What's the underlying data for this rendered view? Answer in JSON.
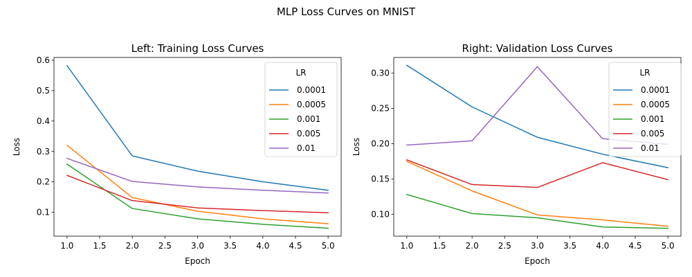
{
  "figure": {
    "suptitle": "MLP Loss Curves on MNIST"
  },
  "chart_data": [
    {
      "type": "line",
      "title": "Left: Training Loss Curves",
      "xlabel": "Epoch",
      "ylabel": "Loss",
      "x": [
        1,
        2,
        3,
        4,
        5
      ],
      "xlim": [
        0.8,
        5.2
      ],
      "ylim": [
        0.021,
        0.609
      ],
      "xticks": [
        1.0,
        1.5,
        2.0,
        2.5,
        3.0,
        3.5,
        4.0,
        4.5,
        5.0
      ],
      "xtick_labels": [
        "1.0",
        "1.5",
        "2.0",
        "2.5",
        "3.0",
        "3.5",
        "4.0",
        "4.5",
        "5.0"
      ],
      "yticks": [
        0.1,
        0.2,
        0.3,
        0.4,
        0.5,
        0.6
      ],
      "ytick_labels": [
        "0.1",
        "0.2",
        "0.3",
        "0.4",
        "0.5",
        "0.6"
      ],
      "grid": false,
      "legend": {
        "title": "LR",
        "placement": "top-right"
      },
      "series": [
        {
          "name": "0.0001",
          "color": "#1f77b4",
          "values": [
            0.582,
            0.285,
            0.235,
            0.2,
            0.172
          ]
        },
        {
          "name": "0.0005",
          "color": "#ff7f0e",
          "values": [
            0.32,
            0.148,
            0.103,
            0.078,
            0.062
          ]
        },
        {
          "name": "0.001",
          "color": "#2ca02c",
          "values": [
            0.258,
            0.112,
            0.078,
            0.06,
            0.047
          ]
        },
        {
          "name": "0.005",
          "color": "#d62728",
          "values": [
            0.221,
            0.138,
            0.114,
            0.105,
            0.098
          ]
        },
        {
          "name": "0.01",
          "color": "#9467bd",
          "values": [
            0.277,
            0.201,
            0.183,
            0.172,
            0.163
          ]
        }
      ]
    },
    {
      "type": "line",
      "title": "Right: Validation Loss Curves",
      "xlabel": "Epoch",
      "ylabel": "Loss",
      "x": [
        1,
        2,
        3,
        4,
        5
      ],
      "xlim": [
        0.8,
        5.2
      ],
      "ylim": [
        0.069,
        0.322
      ],
      "xticks": [
        1.0,
        1.5,
        2.0,
        2.5,
        3.0,
        3.5,
        4.0,
        4.5,
        5.0
      ],
      "xtick_labels": [
        "1.0",
        "1.5",
        "2.0",
        "2.5",
        "3.0",
        "3.5",
        "4.0",
        "4.5",
        "5.0"
      ],
      "yticks": [
        0.1,
        0.15,
        0.2,
        0.25,
        0.3
      ],
      "ytick_labels": [
        "0.10",
        "0.15",
        "0.20",
        "0.25",
        "0.30"
      ],
      "grid": false,
      "legend": {
        "title": "LR",
        "placement": "top-right"
      },
      "series": [
        {
          "name": "0.0001",
          "color": "#1f77b4",
          "values": [
            0.311,
            0.252,
            0.209,
            0.185,
            0.166
          ]
        },
        {
          "name": "0.0005",
          "color": "#ff7f0e",
          "values": [
            0.175,
            0.133,
            0.099,
            0.092,
            0.083
          ]
        },
        {
          "name": "0.001",
          "color": "#2ca02c",
          "values": [
            0.128,
            0.101,
            0.095,
            0.082,
            0.08
          ]
        },
        {
          "name": "0.005",
          "color": "#d62728",
          "values": [
            0.177,
            0.142,
            0.138,
            0.173,
            0.149
          ]
        },
        {
          "name": "0.01",
          "color": "#9467bd",
          "values": [
            0.198,
            0.204,
            0.309,
            0.207,
            0.199
          ]
        }
      ]
    }
  ]
}
